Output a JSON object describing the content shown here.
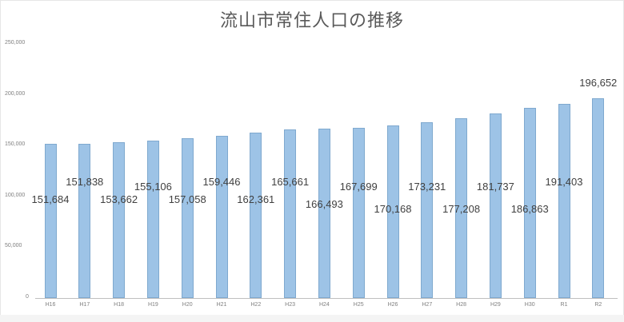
{
  "chart_data": {
    "type": "bar",
    "title": "流山市常住人口の推移",
    "xlabel": "",
    "ylabel": "",
    "ylim": [
      0,
      250000
    ],
    "yticks": [
      "0",
      "50,000",
      "100,000",
      "150,000",
      "200,000",
      "250,000"
    ],
    "grid": false,
    "legend": null,
    "categories": [
      "H16",
      "H17",
      "H18",
      "H19",
      "H20",
      "H21",
      "H22",
      "H23",
      "H24",
      "H25",
      "H26",
      "H27",
      "H28",
      "H29",
      "H30",
      "R1",
      "R2"
    ],
    "values": [
      151684,
      151838,
      153662,
      155106,
      157058,
      159446,
      162361,
      165661,
      166493,
      167699,
      170168,
      173231,
      177208,
      181737,
      186863,
      191403,
      196652
    ],
    "data_labels": [
      "151,684",
      "151,838",
      "153,662",
      "155,106",
      "157,058",
      "159,446",
      "162,361",
      "165,661",
      "166,493",
      "167,699",
      "170,168",
      "173,231",
      "177,208",
      "181,737",
      "186,863",
      "191,403",
      "196,652"
    ],
    "bar_color": "#9dc3e6"
  }
}
